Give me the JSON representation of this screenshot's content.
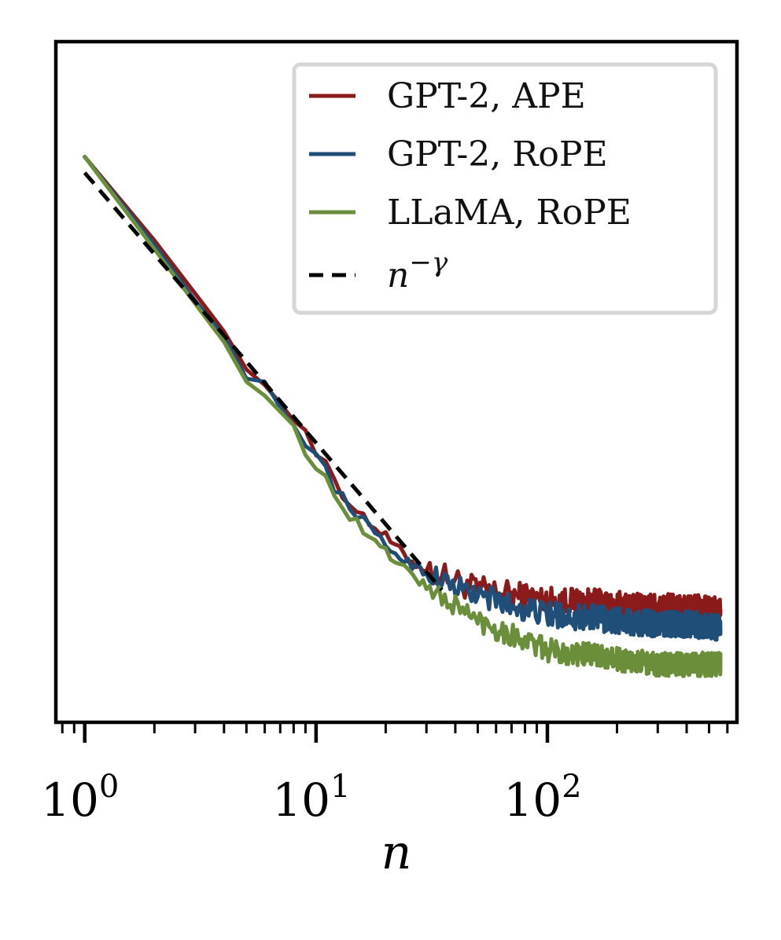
{
  "chart_data": {
    "type": "line",
    "title": "",
    "xlabel": "n",
    "ylabel": "",
    "xscale": "log",
    "yscale": "log",
    "xlim": [
      0.75,
      660
    ],
    "ylim": [
      0.0012,
      0.85
    ],
    "xticks": [
      {
        "base": "10",
        "exp": "0"
      },
      {
        "base": "10",
        "exp": "1"
      },
      {
        "base": "10",
        "exp": "2"
      }
    ],
    "yticks_visible": false,
    "grid": false,
    "legend_position": "top-right",
    "legend": [
      {
        "label": "GPT-2, APE",
        "color": "#8b1a1a",
        "style": "solid"
      },
      {
        "label": "GPT-2, RoPE",
        "color": "#1f4e79",
        "style": "solid"
      },
      {
        "label": "LLaMA, RoPE",
        "color": "#6b8e3a",
        "style": "solid"
      },
      {
        "label_base": "n",
        "label_sup": "−γ",
        "color": "#000000",
        "style": "dashed"
      }
    ],
    "series": [
      {
        "name": "GPT-2, APE",
        "color": "#8b1a1a",
        "noise_start": 30,
        "noise_amp": 0.12,
        "x": [
          1,
          1.5,
          2,
          3,
          4,
          5,
          6,
          7,
          8,
          9,
          10,
          11,
          12,
          13,
          15,
          17,
          20,
          25,
          30,
          40,
          50,
          70,
          100,
          150,
          200,
          300,
          400,
          560
        ],
        "y": [
          0.28,
          0.175,
          0.125,
          0.075,
          0.052,
          0.036,
          0.031,
          0.026,
          0.022,
          0.021,
          0.016,
          0.015,
          0.012,
          0.0105,
          0.0095,
          0.0082,
          0.0072,
          0.0058,
          0.0052,
          0.0047,
          0.0043,
          0.0041,
          0.0039,
          0.0038,
          0.0037,
          0.0036,
          0.0036,
          0.0035
        ]
      },
      {
        "name": "GPT-2, RoPE",
        "color": "#1f4e79",
        "noise_start": 30,
        "noise_amp": 0.11,
        "x": [
          1,
          1.5,
          2,
          3,
          4,
          5,
          6,
          7,
          8,
          9,
          10,
          11,
          12,
          13,
          15,
          17,
          20,
          25,
          30,
          40,
          50,
          70,
          100,
          150,
          200,
          300,
          400,
          560
        ],
        "y": [
          0.28,
          0.175,
          0.12,
          0.07,
          0.05,
          0.033,
          0.032,
          0.025,
          0.021,
          0.018,
          0.0155,
          0.014,
          0.0115,
          0.0105,
          0.009,
          0.0078,
          0.0066,
          0.0056,
          0.0051,
          0.0044,
          0.0041,
          0.0037,
          0.0034,
          0.0033,
          0.0032,
          0.0031,
          0.0031,
          0.003
        ]
      },
      {
        "name": "LLaMA, RoPE",
        "color": "#6b8e3a",
        "noise_start": 30,
        "noise_amp": 0.1,
        "x": [
          1,
          1.5,
          2,
          3,
          4,
          5,
          6,
          7,
          8,
          9,
          10,
          11,
          12,
          13,
          15,
          17,
          20,
          25,
          30,
          40,
          50,
          70,
          100,
          150,
          200,
          300,
          400,
          560
        ],
        "y": [
          0.28,
          0.165,
          0.115,
          0.068,
          0.047,
          0.032,
          0.028,
          0.024,
          0.021,
          0.0165,
          0.014,
          0.0125,
          0.011,
          0.0095,
          0.0082,
          0.0071,
          0.0062,
          0.0052,
          0.0044,
          0.0037,
          0.0032,
          0.0028,
          0.0024,
          0.0023,
          0.0022,
          0.0021,
          0.0021,
          0.0021
        ]
      }
    ],
    "reference": {
      "name": "n^-γ",
      "color": "#000000",
      "style": "dashed",
      "x": [
        1,
        35
      ],
      "y": [
        0.24,
        0.0043
      ]
    }
  }
}
